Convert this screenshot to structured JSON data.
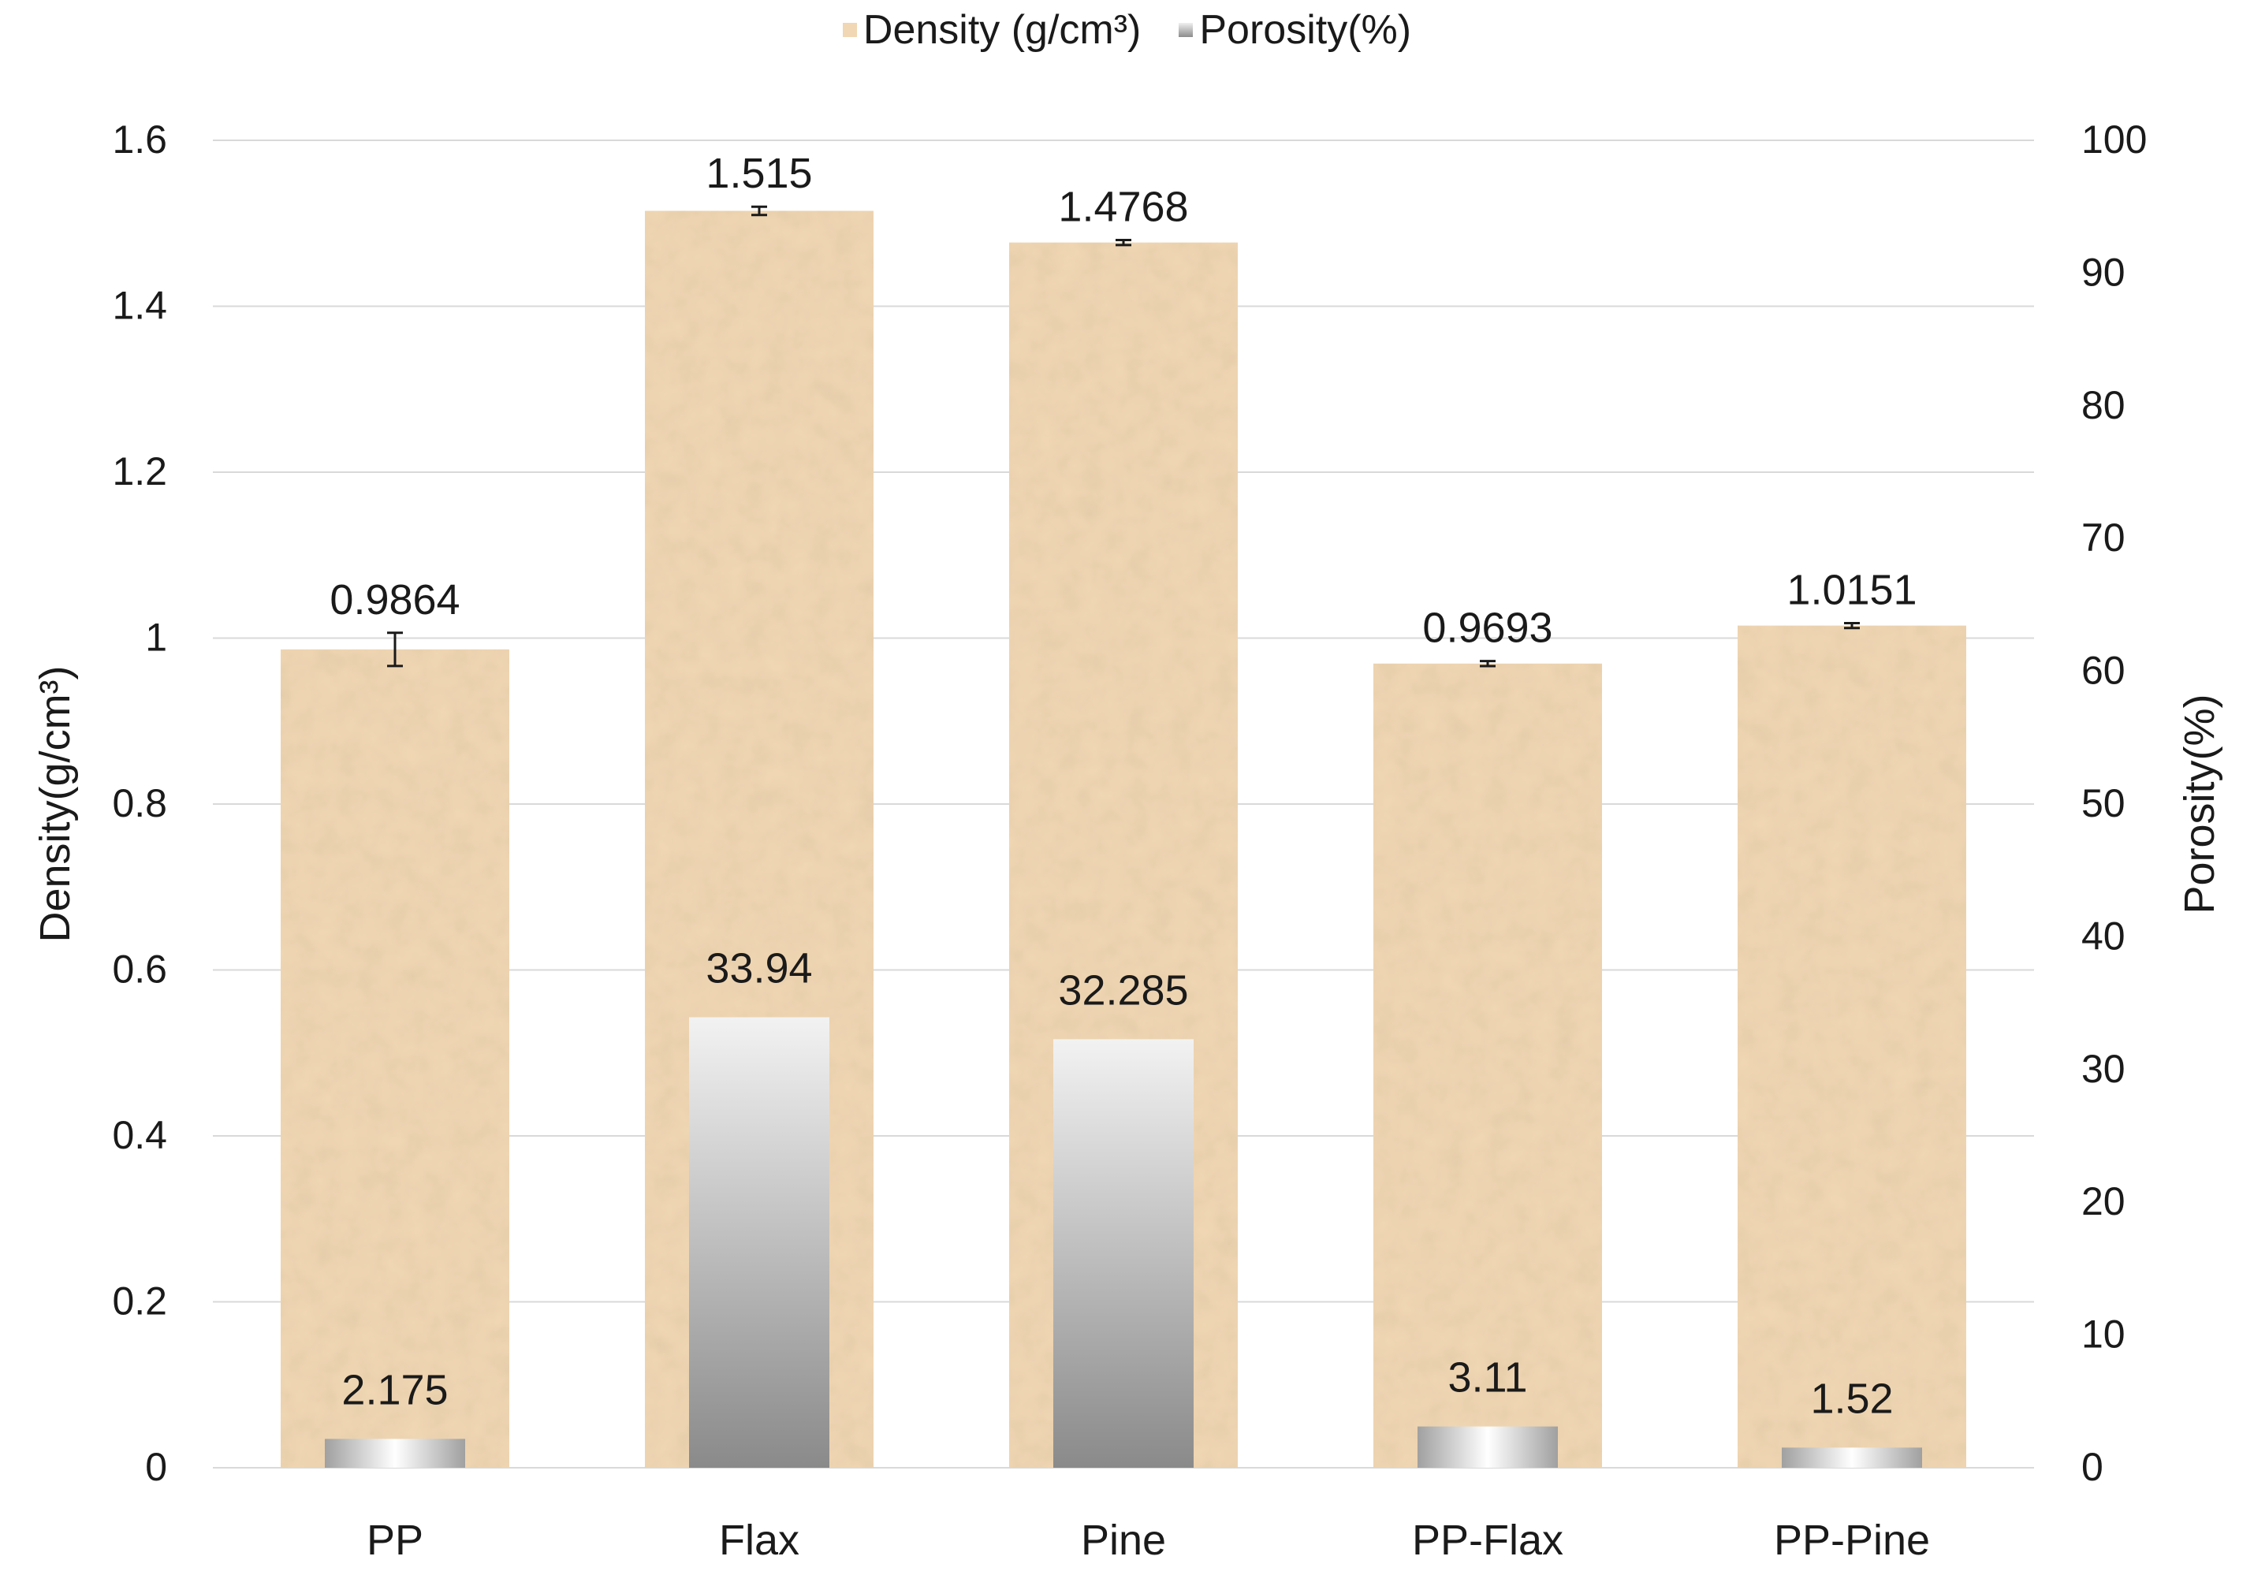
{
  "chart_data": {
    "type": "bar",
    "categories": [
      "PP",
      "Flax",
      "Pine",
      "PP-Flax",
      "PP-Pine"
    ],
    "series": [
      {
        "name": "Density (g/cm³)",
        "axis": "left",
        "values": [
          0.9864,
          1.515,
          1.4768,
          0.9693,
          1.0151
        ],
        "labels": [
          "0.9864",
          "1.515",
          "1.4768",
          "0.9693",
          "1.0151"
        ],
        "error": [
          0.02,
          0.005,
          0.003,
          0.003,
          0.003
        ],
        "color": "#f1d7b3"
      },
      {
        "name": "Porosity(%)",
        "axis": "right",
        "values": [
          2.175,
          33.94,
          32.285,
          3.11,
          1.52
        ],
        "labels": [
          "2.175",
          "33.94",
          "32.285",
          "3.11",
          "1.52"
        ],
        "color": "#a8a8a8"
      }
    ],
    "y_left": {
      "label": "Density(g/cm³)",
      "min": 0,
      "max": 1.6,
      "ticks": [
        "0",
        "0.2",
        "0.4",
        "0.6",
        "0.8",
        "1",
        "1.2",
        "1.4",
        "1.6"
      ]
    },
    "y_right": {
      "label": "Porosity(%)",
      "min": 0,
      "max": 100,
      "ticks": [
        "0",
        "10",
        "20",
        "30",
        "40",
        "50",
        "60",
        "70",
        "80",
        "90",
        "100"
      ]
    },
    "grid": true,
    "legend": "top-center"
  }
}
